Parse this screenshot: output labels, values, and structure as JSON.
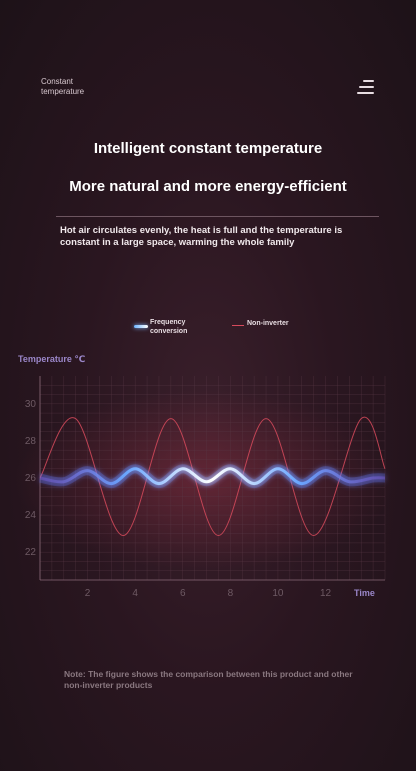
{
  "header": {
    "brand_line1": "Constant",
    "brand_line2": "temperature",
    "menu_icon": "menu-icon"
  },
  "hero": {
    "title": "Intelligent constant temperature",
    "subtitle": "More natural and more energy-efficient",
    "description": "Hot air circulates evenly, the heat is full and the temperature is constant in a large space, warming the whole family"
  },
  "note": "Note: The figure shows the comparison between this product and other non-inverter products",
  "colors": {
    "frequency": "#8fc4ff",
    "non_inverter": "#d64a5c",
    "axis_label": "#9a86c8"
  },
  "chart_data": {
    "type": "line",
    "title": "",
    "xlabel": "Time",
    "ylabel": "Temperature ℃",
    "x_ticks": [
      2,
      4,
      6,
      8,
      10,
      12
    ],
    "y_ticks": [
      22,
      24,
      26,
      28,
      30
    ],
    "xlim": [
      0,
      14.5
    ],
    "ylim": [
      20.5,
      31.5
    ],
    "grid": true,
    "legend": "top-center",
    "series": [
      {
        "name": "Frequency conversion",
        "x": [
          0,
          1,
          2,
          3,
          4,
          5,
          6,
          7,
          8,
          9,
          10,
          11,
          12,
          13,
          14,
          14.5
        ],
        "values": [
          26,
          25.8,
          26.4,
          25.7,
          26.5,
          25.7,
          26.5,
          25.8,
          26.5,
          25.7,
          26.5,
          25.7,
          26.4,
          25.8,
          26,
          26
        ]
      },
      {
        "name": "Non-inverter",
        "x": [
          0,
          1.5,
          3.5,
          5.5,
          7.5,
          9.5,
          11.5,
          13.5,
          14.5
        ],
        "values": [
          26,
          29.2,
          22.9,
          29.2,
          22.9,
          29.2,
          22.9,
          29.2,
          26.5
        ]
      }
    ],
    "legend_labels": {
      "frequency_line1": "Frequency",
      "frequency_line2": "conversion",
      "non_inverter": "Non-inverter"
    }
  }
}
